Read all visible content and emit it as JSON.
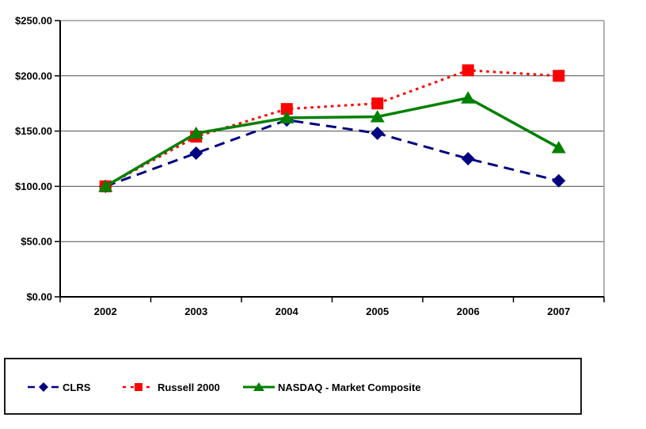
{
  "chart_data": {
    "type": "line",
    "title": "",
    "xlabel": "",
    "ylabel": "",
    "categories": [
      "2002",
      "2003",
      "2004",
      "2005",
      "2006",
      "2007"
    ],
    "series": [
      {
        "name": "CLRS",
        "values": [
          100,
          130,
          160,
          148,
          125,
          105
        ],
        "color": "#000080",
        "marker": "diamond",
        "line_style": "dashed"
      },
      {
        "name": "Russell 2000",
        "values": [
          100,
          145,
          170,
          175,
          205,
          200
        ],
        "color": "#FF0000",
        "marker": "square",
        "line_style": "dotted"
      },
      {
        "name": "NASDAQ - Market Composite",
        "values": [
          100,
          148,
          162,
          163,
          180,
          135
        ],
        "color": "#008000",
        "marker": "triangle",
        "line_style": "solid"
      }
    ],
    "ylim": [
      0,
      250
    ],
    "y_ticks": [
      {
        "value": 0,
        "label": "$0.00"
      },
      {
        "value": 50,
        "label": "$50.00"
      },
      {
        "value": 100,
        "label": "$100.00"
      },
      {
        "value": 150,
        "label": "$150.00"
      },
      {
        "value": 200,
        "label": "$200.00"
      },
      {
        "value": 250,
        "label": "$250.00"
      }
    ],
    "grid": "horizontal",
    "legend_position": "bottom"
  },
  "colors": {
    "gridline": "#4d4d4d",
    "axis": "#000000",
    "plot_border": "#999999",
    "background": "#ffffff"
  }
}
